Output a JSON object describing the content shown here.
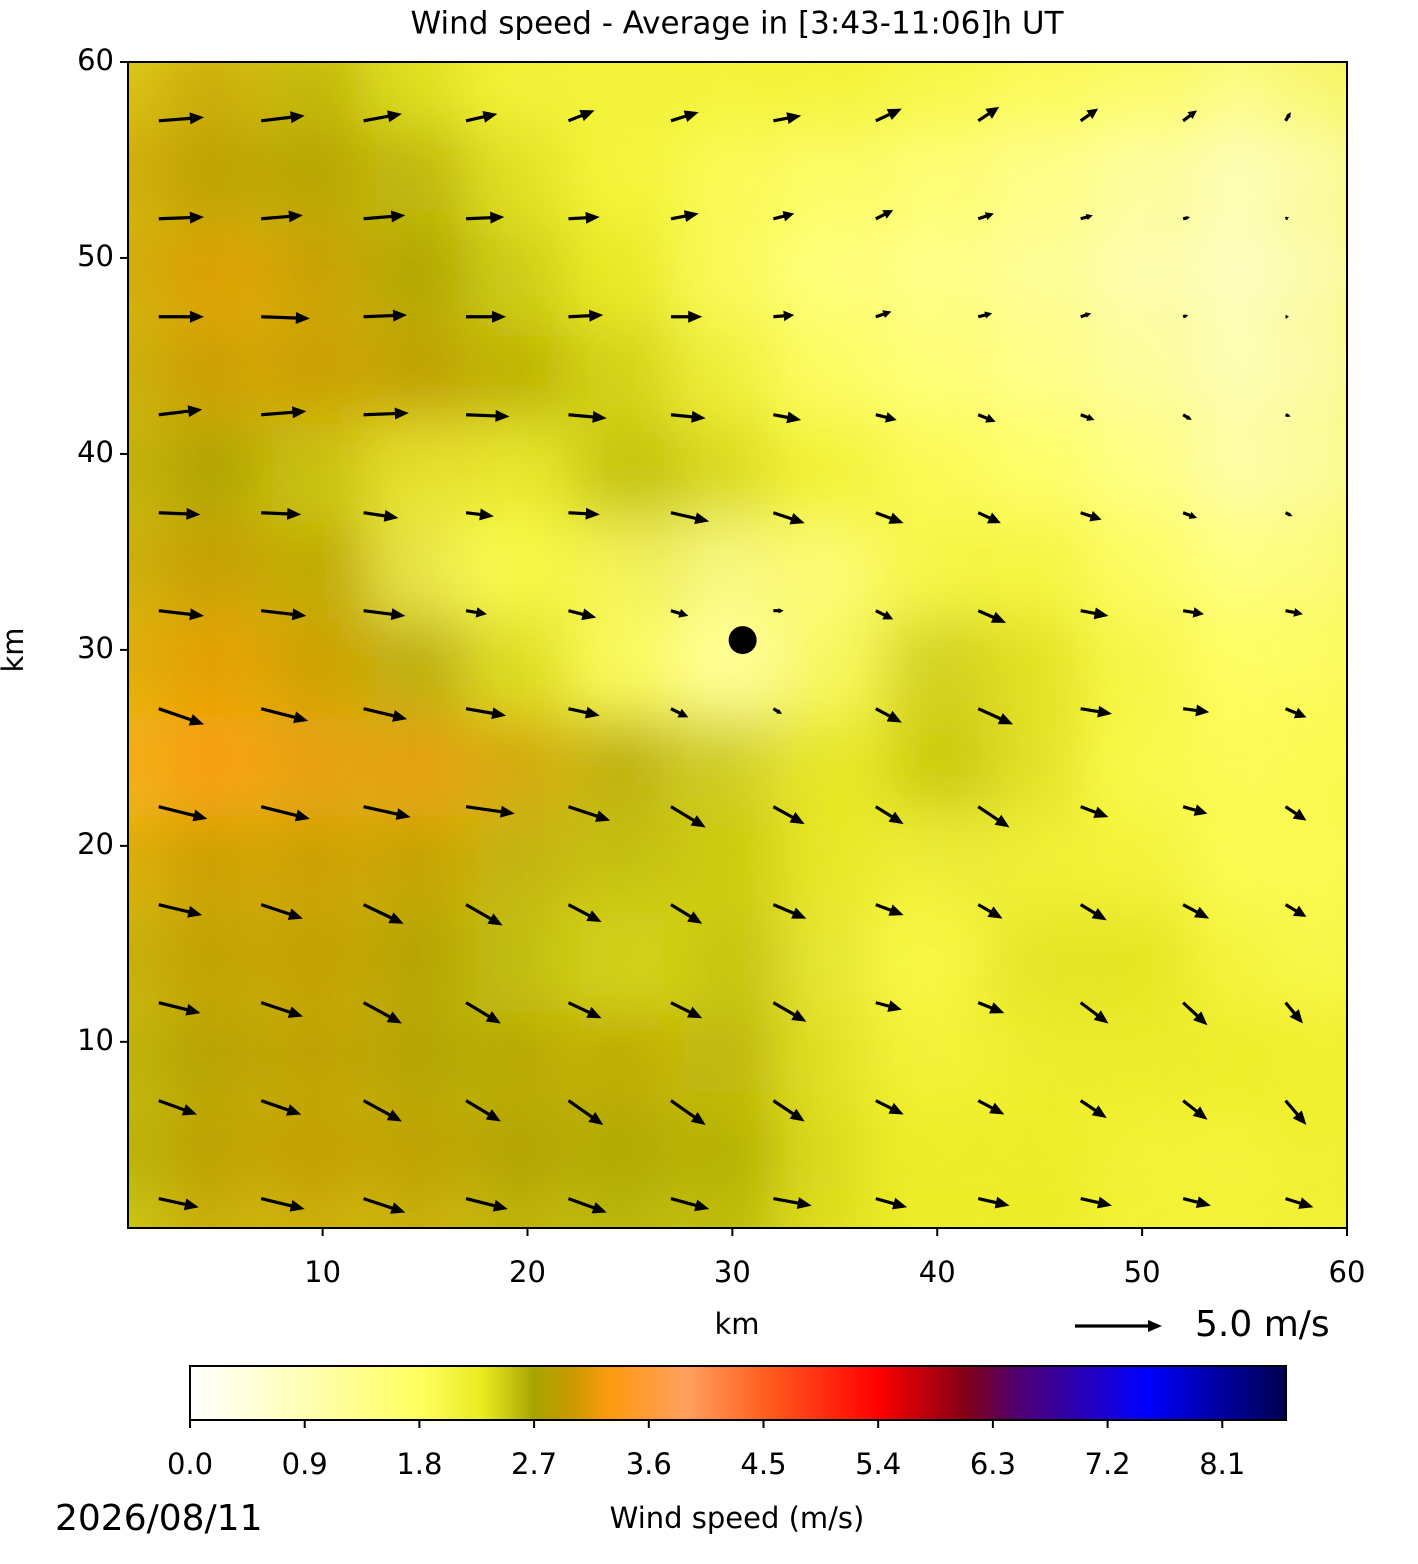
{
  "chart_data": {
    "type": "quiver",
    "title": "Wind speed - Average in [3:43-11:06]h UT",
    "xlabel": "km",
    "ylabel": "km",
    "xlim": [
      0.5,
      60
    ],
    "ylim": [
      0.5,
      60
    ],
    "xticks": [
      10,
      20,
      30,
      40,
      50,
      60
    ],
    "yticks": [
      10,
      20,
      30,
      40,
      50,
      60
    ],
    "x": [
      2,
      7,
      12,
      17,
      22,
      27,
      32,
      37,
      42,
      47,
      52,
      57
    ],
    "y": [
      57,
      52,
      47,
      42,
      37,
      32,
      27,
      22,
      17,
      12,
      7,
      2
    ],
    "u": [
      [
        2.6,
        2.5,
        2.2,
        1.8,
        1.5,
        1.6,
        1.6,
        1.5,
        1.2,
        1.0,
        0.8,
        0.3
      ],
      [
        2.6,
        2.4,
        2.4,
        2.2,
        1.8,
        1.6,
        1.2,
        1.0,
        0.9,
        0.7,
        0.4,
        0.2
      ],
      [
        2.6,
        2.8,
        2.5,
        2.3,
        2.0,
        1.8,
        1.2,
        0.9,
        0.8,
        0.6,
        0.3,
        0.2
      ],
      [
        2.5,
        2.6,
        2.6,
        2.5,
        2.2,
        2.0,
        1.6,
        1.2,
        1.0,
        0.8,
        0.5,
        0.3
      ],
      [
        2.4,
        2.3,
        2.0,
        1.6,
        1.8,
        2.2,
        1.8,
        1.6,
        1.3,
        1.2,
        0.8,
        0.4
      ],
      [
        2.6,
        2.6,
        2.4,
        1.2,
        1.6,
        1.0,
        0.6,
        1.0,
        1.6,
        1.6,
        1.2,
        1.0
      ],
      [
        2.6,
        2.7,
        2.5,
        2.3,
        1.8,
        1.0,
        0.5,
        1.5,
        2.0,
        1.8,
        1.5,
        1.2
      ],
      [
        2.8,
        2.8,
        2.7,
        2.8,
        2.4,
        2.0,
        1.8,
        1.6,
        1.8,
        1.6,
        1.4,
        1.2
      ],
      [
        2.5,
        2.4,
        2.3,
        2.1,
        1.9,
        1.8,
        1.9,
        1.6,
        1.4,
        1.5,
        1.5,
        1.2
      ],
      [
        2.4,
        2.4,
        2.2,
        2.0,
        1.9,
        1.8,
        1.9,
        1.5,
        1.5,
        1.6,
        1.4,
        1.0
      ],
      [
        2.2,
        2.3,
        2.2,
        2.0,
        2.0,
        2.0,
        1.8,
        1.6,
        1.5,
        1.5,
        1.4,
        1.2
      ],
      [
        2.3,
        2.5,
        2.4,
        2.4,
        2.2,
        2.2,
        2.2,
        1.8,
        1.8,
        1.8,
        1.6,
        1.6
      ]
    ],
    "v": [
      [
        0.2,
        0.3,
        0.4,
        0.4,
        0.6,
        0.5,
        0.3,
        0.7,
        0.8,
        0.7,
        0.6,
        0.5
      ],
      [
        0.1,
        0.2,
        0.2,
        0.1,
        0.1,
        0.3,
        0.3,
        0.5,
        0.3,
        0.2,
        0.1,
        0.1
      ],
      [
        0,
        -0.1,
        0.1,
        0,
        0.1,
        0,
        0.1,
        0.3,
        0.2,
        0.2,
        0.1,
        0
      ],
      [
        0.3,
        0.2,
        0.1,
        -0.1,
        -0.2,
        -0.2,
        -0.3,
        -0.3,
        -0.4,
        -0.3,
        -0.3,
        -0.1
      ],
      [
        -0.1,
        -0.1,
        -0.3,
        -0.2,
        -0.1,
        -0.5,
        -0.6,
        -0.6,
        -0.6,
        -0.4,
        -0.3,
        -0.2
      ],
      [
        -0.3,
        -0.3,
        -0.3,
        -0.2,
        -0.4,
        -0.3,
        0,
        -0.5,
        -0.7,
        -0.3,
        -0.2,
        -0.2
      ],
      [
        -0.9,
        -0.7,
        -0.6,
        -0.4,
        -0.4,
        -0.5,
        -0.3,
        -0.8,
        -0.9,
        -0.3,
        -0.2,
        -0.5
      ],
      [
        -0.7,
        -0.7,
        -0.6,
        -0.4,
        -0.8,
        -1.2,
        -1.0,
        -1.0,
        -1.2,
        -0.6,
        -0.4,
        -0.8
      ],
      [
        -0.6,
        -0.8,
        -1.1,
        -1.2,
        -1.0,
        -1.1,
        -0.8,
        -0.6,
        -0.8,
        -0.9,
        -0.8,
        -0.7
      ],
      [
        -0.6,
        -0.8,
        -1.2,
        -1.2,
        -0.9,
        -0.9,
        -1.1,
        -0.4,
        -0.6,
        -1.2,
        -1.3,
        -1.2
      ],
      [
        -0.8,
        -0.8,
        -1.2,
        -1.2,
        -1.4,
        -1.4,
        -1.2,
        -0.8,
        -0.8,
        -1.0,
        -1.1,
        -1.4
      ],
      [
        -0.5,
        -0.6,
        -0.8,
        -0.6,
        -0.8,
        -0.6,
        -0.4,
        -0.5,
        -0.4,
        -0.4,
        -0.4,
        -0.5
      ]
    ],
    "marker": {
      "x": 30.5,
      "y": 30.5
    },
    "quiver_key": {
      "value": 5.0,
      "label": "5.0 m/s"
    },
    "colorbar": {
      "label": "Wind speed (m/s)",
      "clim": [
        0,
        8.6
      ],
      "ticks": [
        {
          "value": 0,
          "label": "0.0"
        },
        0.9,
        1.8,
        2.7,
        3.6,
        4.5,
        5.4,
        6.3,
        7.2,
        8.1
      ],
      "colormap": [
        {
          "value": 0,
          "color": "#ffffff"
        },
        {
          "value": 0.5,
          "color": "#ffffd8"
        },
        {
          "value": 1.8,
          "color": "#ffff60"
        },
        {
          "value": 2.3,
          "color": "#eaea20"
        },
        {
          "value": 2.7,
          "color": "#a8a400"
        },
        {
          "value": 3.0,
          "color": "#c89a00"
        },
        {
          "value": 3.3,
          "color": "#ff9a10"
        },
        {
          "value": 3.9,
          "color": "#ffa060"
        },
        {
          "value": 4.5,
          "color": "#ff6020"
        },
        {
          "value": 5.4,
          "color": "#ff0000"
        },
        {
          "value": 6.1,
          "color": "#800018"
        },
        {
          "value": 6.5,
          "color": "#500070"
        },
        {
          "value": 7.5,
          "color": "#0000ff"
        },
        {
          "value": 8.6,
          "color": "#000050"
        }
      ]
    },
    "date": "2026/08/11"
  }
}
